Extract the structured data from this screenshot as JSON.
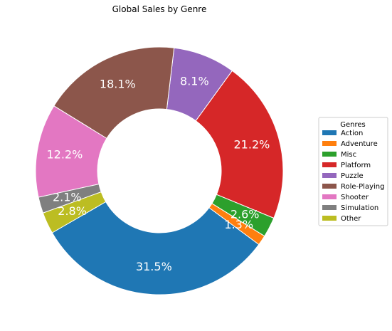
{
  "chart_data": {
    "type": "pie",
    "title": "Global Sales by Genre",
    "legend_title": "Genres",
    "legend_position": "right",
    "donut": true,
    "categories": [
      "Action",
      "Adventure",
      "Misc",
      "Platform",
      "Puzzle",
      "Role-Playing",
      "Shooter",
      "Simulation",
      "Other"
    ],
    "values": [
      31.5,
      1.3,
      2.6,
      21.2,
      8.1,
      18.1,
      12.2,
      2.1,
      2.8
    ],
    "labels": [
      "31.5%",
      "1.3%",
      "2.6%",
      "21.2%",
      "8.1%",
      "18.1%",
      "12.2%",
      "2.1%",
      "2.8%"
    ],
    "colors": [
      "#1f77b4",
      "#ff7f0e",
      "#2ca02c",
      "#d62728",
      "#9467bd",
      "#8c564b",
      "#e377c2",
      "#7f7f7f",
      "#bcbd22"
    ]
  }
}
